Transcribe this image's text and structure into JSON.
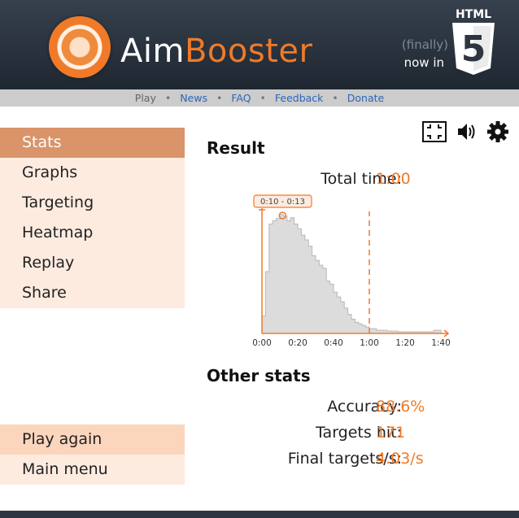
{
  "header": {
    "logo_aim": "Aim",
    "logo_booster": "Booster",
    "finally": "(finally)",
    "now_in": "now in",
    "html5_label": "HTML",
    "html5_number": "5"
  },
  "nav": {
    "items": [
      "Play",
      "News",
      "FAQ",
      "Feedback",
      "Donate"
    ],
    "separator": "•"
  },
  "sidebar": {
    "items": [
      {
        "label": "Stats",
        "active": true
      },
      {
        "label": "Graphs",
        "active": false
      },
      {
        "label": "Targeting",
        "active": false
      },
      {
        "label": "Heatmap",
        "active": false
      },
      {
        "label": "Replay",
        "active": false
      },
      {
        "label": "Share",
        "active": false
      }
    ],
    "play_again": "Play again",
    "main_menu": "Main menu"
  },
  "toolbar": {
    "icons": [
      "fullscreen-icon",
      "sound-icon",
      "gear-icon"
    ]
  },
  "result": {
    "heading": "Result",
    "total_time_label": "Total time:",
    "total_time_value": "1:00"
  },
  "other_stats": {
    "heading": "Other stats",
    "accuracy_label": "Accuracy:",
    "accuracy_value": "88.6%",
    "targets_hit_label": "Targets hit:",
    "targets_hit_value": "171",
    "final_rate_label": "Final targets/s:",
    "final_rate_value": "4.03/s"
  },
  "chart_data": {
    "type": "area",
    "x_ticks": [
      "0:00",
      "0:20",
      "0:40",
      "1:00",
      "1:20",
      "1:40"
    ],
    "xlim": [
      0,
      105
    ],
    "x_seconds": [
      0,
      2,
      4,
      6,
      8,
      10,
      12,
      14,
      16,
      18,
      20,
      22,
      24,
      26,
      28,
      30,
      32,
      34,
      36,
      38,
      40,
      42,
      44,
      46,
      48,
      50,
      52,
      54,
      56,
      58,
      60,
      62,
      64,
      66,
      68,
      70,
      72,
      74,
      76,
      78,
      80,
      82,
      84,
      86,
      88,
      90,
      92,
      94,
      96,
      98,
      100
    ],
    "values": [
      22,
      78,
      138,
      142,
      145,
      150,
      148,
      142,
      146,
      138,
      132,
      124,
      118,
      110,
      98,
      92,
      86,
      82,
      66,
      62,
      52,
      46,
      40,
      32,
      24,
      18,
      14,
      12,
      10,
      8,
      6,
      6,
      4,
      4,
      4,
      3,
      3,
      3,
      2,
      2,
      2,
      2,
      2,
      2,
      2,
      2,
      2,
      2,
      4,
      4,
      0
    ],
    "ylim": [
      0,
      160
    ],
    "selection_label": "0:10 - 0:13",
    "selection_start": 0,
    "selection_marker": 11.5,
    "dashed_line_at": 60,
    "colors": {
      "fill": "#dcdcdc",
      "stroke": "#b8b8b8",
      "accent": "#f07a28"
    }
  }
}
